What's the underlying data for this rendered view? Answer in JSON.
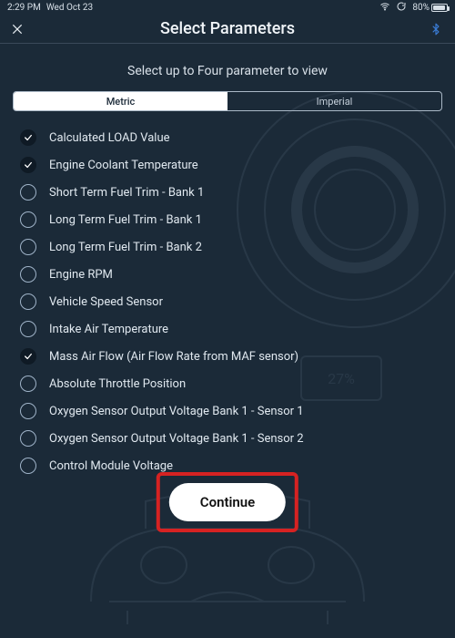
{
  "statusBar": {
    "time": "2:29 PM",
    "date": "Wed Oct 23",
    "batteryPercent": "80%",
    "batteryFillPct": 80
  },
  "titleBar": {
    "title": "Select Parameters"
  },
  "subtitle": "Select up to Four parameter to view",
  "unitSegment": {
    "options": [
      {
        "label": "Metric",
        "active": true
      },
      {
        "label": "Imperial",
        "active": false
      }
    ]
  },
  "parameters": [
    {
      "label": "Calculated LOAD Value",
      "checked": true
    },
    {
      "label": "Engine Coolant Temperature",
      "checked": true
    },
    {
      "label": "Short Term Fuel Trim - Bank 1",
      "checked": false
    },
    {
      "label": "Long Term Fuel Trim - Bank 1",
      "checked": false
    },
    {
      "label": "Long Term Fuel Trim - Bank 2",
      "checked": false
    },
    {
      "label": "Engine RPM",
      "checked": false
    },
    {
      "label": "Vehicle Speed Sensor",
      "checked": false
    },
    {
      "label": "Intake Air Temperature",
      "checked": false
    },
    {
      "label": "Mass Air Flow (Air Flow Rate from MAF sensor)",
      "checked": true
    },
    {
      "label": "Absolute Throttle Position",
      "checked": false
    },
    {
      "label": "Oxygen Sensor Output Voltage Bank 1 - Sensor 1",
      "checked": false
    },
    {
      "label": "Oxygen Sensor Output Voltage Bank 1 - Sensor 2",
      "checked": false
    },
    {
      "label": "Control Module Voltage",
      "checked": false
    }
  ],
  "continueButton": {
    "label": "Continue"
  },
  "bgGauge": {
    "value": "27%"
  },
  "colors": {
    "pageBg": "#1b2a38",
    "text": "#e8eef4",
    "highlight": "#d62222",
    "buttonBg": "#ffffff",
    "buttonText": "#111111"
  }
}
